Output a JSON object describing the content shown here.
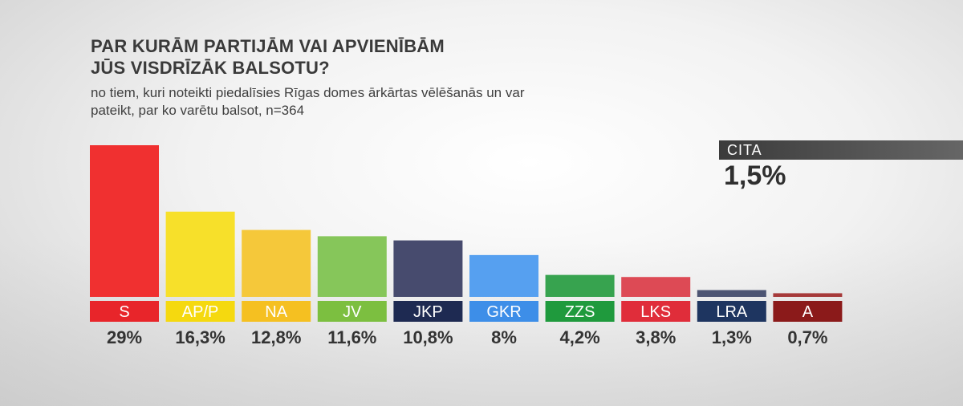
{
  "title_line1": "PAR KURĀM PARTIJĀM VAI APVIENĪBĀM",
  "title_line2": "JŪS VISDRĪZĀK BALSOTU?",
  "subtitle_line1": "no tiem, kuri noteikti piedalīsies Rīgas domes ārkārtas vēlēšanās un var",
  "subtitle_line2": "pateikt, par ko varētu balsot, n=364",
  "cita": {
    "label": "CITA",
    "value": "1,5%"
  },
  "chart_data": {
    "type": "bar",
    "categories": [
      "S",
      "AP/P",
      "NA",
      "JV",
      "JKP",
      "GKR",
      "ZZS",
      "LKS",
      "LRA",
      "A"
    ],
    "values": [
      29,
      16.3,
      12.8,
      11.6,
      10.8,
      8,
      4.2,
      3.8,
      1.3,
      0.7
    ],
    "value_labels": [
      "29%",
      "16,3%",
      "12,8%",
      "11,6%",
      "10,8%",
      "8%",
      "4,2%",
      "3,8%",
      "1,3%",
      "0,7%"
    ],
    "colors": [
      "#f03030",
      "#f7e02a",
      "#f5c83a",
      "#86c65a",
      "#474b6e",
      "#56a0f0",
      "#37a34f",
      "#dd4a55",
      "#4d5573",
      "#a63a3a"
    ],
    "label_colors": [
      "#e8252a",
      "#f5d90f",
      "#f5c021",
      "#7cbf40",
      "#1e2a52",
      "#3d8ee8",
      "#1f9a3d",
      "#e02d3a",
      "#1e3560",
      "#8b1a1a"
    ],
    "ylim": [
      0,
      29
    ],
    "title": "PAR KURĀM PARTIJĀM VAI APVIENĪBĀM JŪS VISDRĪZĀK BALSOTU?",
    "xlabel": "",
    "ylabel": ""
  }
}
